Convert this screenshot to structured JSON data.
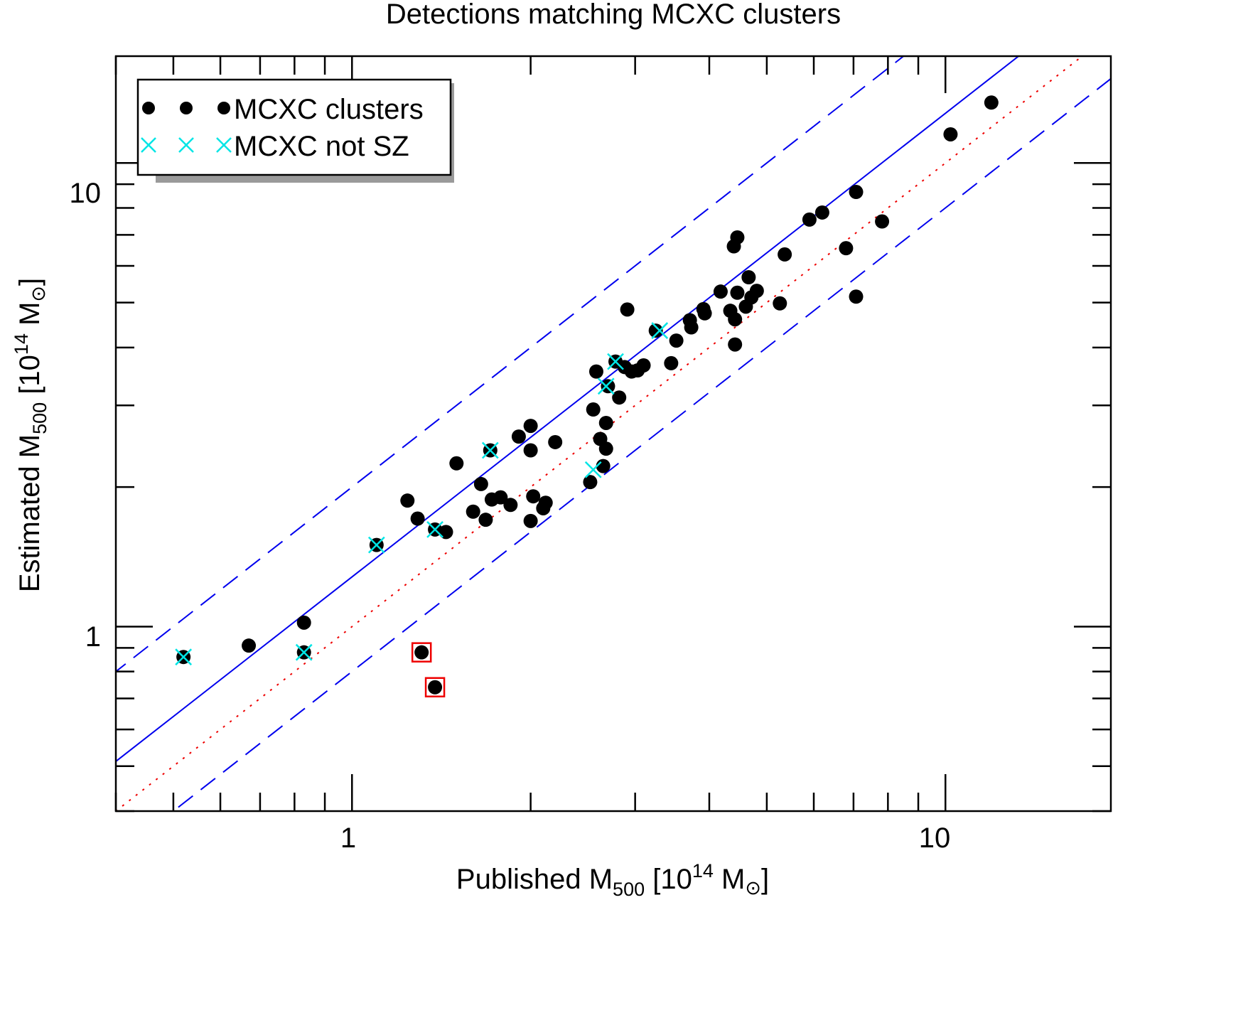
{
  "chart_data": {
    "type": "scatter",
    "title": "Detections matching MCXC clusters",
    "xlabel": {
      "main": "Published M",
      "sub": "500",
      "open": " [10",
      "sup": "14",
      "unit": " M",
      "sun": "⊙",
      "close": "]"
    },
    "ylabel": {
      "main": "Estimated M",
      "sub": "500",
      "open": " [10",
      "sup": "14",
      "unit": " M",
      "sun": "⊙",
      "close": "]"
    },
    "xscale": "log",
    "yscale": "log",
    "xlim": [
      0.4,
      19
    ],
    "ylim": [
      0.4,
      17
    ],
    "xticks": [
      {
        "value": 1,
        "label": "1"
      },
      {
        "value": 10,
        "label": "10"
      }
    ],
    "yticks": [
      {
        "value": 1,
        "label": "1"
      },
      {
        "value": 10,
        "label": "10"
      }
    ],
    "grid": false,
    "legend": {
      "position": "top-left",
      "entries": [
        {
          "label": "MCXC clusters",
          "marker": "filled-circle",
          "color": "#000000"
        },
        {
          "label": "MCXC not SZ",
          "marker": "x",
          "color": "#00e5e5"
        }
      ]
    },
    "reference_lines": [
      {
        "name": "fit",
        "style": "solid",
        "color": "#0000ee",
        "slope": 1,
        "ratio": 1.28
      },
      {
        "name": "upper-envelope",
        "style": "dashed",
        "color": "#0000ee",
        "slope": 1,
        "ratio": 2.0
      },
      {
        "name": "lower-envelope",
        "style": "dashed",
        "color": "#0000ee",
        "slope": 1,
        "ratio": 0.8
      },
      {
        "name": "one-to-one",
        "style": "dotted",
        "color": "#ee0000",
        "slope": 1,
        "ratio": 1.0
      }
    ],
    "series": [
      {
        "name": "MCXC clusters",
        "color": "#000000",
        "points": [
          [
            0.52,
            0.86
          ],
          [
            0.67,
            0.91
          ],
          [
            0.83,
            1.02
          ],
          [
            0.83,
            0.88
          ],
          [
            1.1,
            1.5
          ],
          [
            1.24,
            1.87
          ],
          [
            1.29,
            1.71
          ],
          [
            1.31,
            0.88
          ],
          [
            1.38,
            0.74
          ],
          [
            1.38,
            1.62
          ],
          [
            1.44,
            1.6
          ],
          [
            1.5,
            2.25
          ],
          [
            1.6,
            1.77
          ],
          [
            1.65,
            2.03
          ],
          [
            1.68,
            1.7
          ],
          [
            1.71,
            2.4
          ],
          [
            1.72,
            1.88
          ],
          [
            1.78,
            1.9
          ],
          [
            1.85,
            1.83
          ],
          [
            1.91,
            2.57
          ],
          [
            2.0,
            2.4
          ],
          [
            2.0,
            2.71
          ],
          [
            2.0,
            1.69
          ],
          [
            2.02,
            1.91
          ],
          [
            2.1,
            1.8
          ],
          [
            2.12,
            1.85
          ],
          [
            2.2,
            2.5
          ],
          [
            2.52,
            2.05
          ],
          [
            2.55,
            2.94
          ],
          [
            2.58,
            3.55
          ],
          [
            2.62,
            2.54
          ],
          [
            2.65,
            2.22
          ],
          [
            2.68,
            2.75
          ],
          [
            2.68,
            2.42
          ],
          [
            2.7,
            3.3
          ],
          [
            2.78,
            3.73
          ],
          [
            2.82,
            3.12
          ],
          [
            2.88,
            3.63
          ],
          [
            2.91,
            4.83
          ],
          [
            2.96,
            3.55
          ],
          [
            3.03,
            3.57
          ],
          [
            3.1,
            3.66
          ],
          [
            3.25,
            4.35
          ],
          [
            3.45,
            3.7
          ],
          [
            3.52,
            4.14
          ],
          [
            3.71,
            4.58
          ],
          [
            3.73,
            4.42
          ],
          [
            3.91,
            4.84
          ],
          [
            3.93,
            4.74
          ],
          [
            4.18,
            5.28
          ],
          [
            4.34,
            4.8
          ],
          [
            4.4,
            6.61
          ],
          [
            4.42,
            4.6
          ],
          [
            4.42,
            4.06
          ],
          [
            4.46,
            6.91
          ],
          [
            4.46,
            5.25
          ],
          [
            4.61,
            4.9
          ],
          [
            4.66,
            5.67
          ],
          [
            4.71,
            5.13
          ],
          [
            4.81,
            5.3
          ],
          [
            5.26,
            4.98
          ],
          [
            5.36,
            6.35
          ],
          [
            5.9,
            7.55
          ],
          [
            6.2,
            7.82
          ],
          [
            6.8,
            6.55
          ],
          [
            7.07,
            8.66
          ],
          [
            7.07,
            5.15
          ],
          [
            7.82,
            7.48
          ],
          [
            10.2,
            11.53
          ],
          [
            11.95,
            13.5
          ]
        ]
      },
      {
        "name": "MCXC not SZ",
        "color": "#00e5e5",
        "points": [
          [
            0.52,
            0.86
          ],
          [
            0.83,
            0.88
          ],
          [
            1.1,
            1.5
          ],
          [
            1.38,
            1.62
          ],
          [
            1.71,
            2.4
          ],
          [
            2.55,
            2.18
          ],
          [
            2.68,
            3.3
          ],
          [
            2.78,
            3.73
          ],
          [
            3.3,
            4.35
          ]
        ]
      }
    ],
    "highlighted": {
      "name": "red-square-highlights",
      "color": "#ee0000",
      "points": [
        [
          1.31,
          0.88
        ],
        [
          1.38,
          0.74
        ]
      ]
    }
  }
}
